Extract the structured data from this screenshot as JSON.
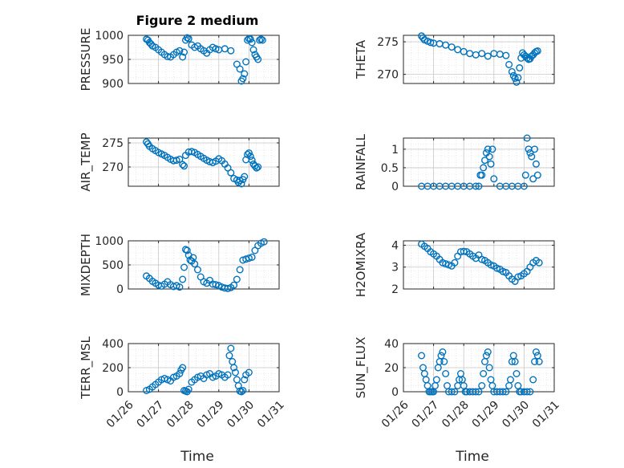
{
  "figure": {
    "title": "Figure 2 medium",
    "marker_color": "#0072bd",
    "xlabel": "Time",
    "x_ticks": [
      "01/26",
      "01/27",
      "01/28",
      "01/29",
      "01/30",
      "01/31"
    ]
  },
  "chart_data": [
    {
      "type": "scatter",
      "ylabel": "PRESSURE",
      "ylim": [
        900,
        1000
      ],
      "yticks": [
        900,
        950,
        1000
      ],
      "grid": true,
      "x": [
        0.6,
        0.65,
        0.7,
        0.75,
        0.8,
        0.9,
        1.0,
        1.1,
        1.2,
        1.3,
        1.4,
        1.5,
        1.6,
        1.7,
        1.8,
        1.85,
        1.9,
        1.95,
        2.0,
        2.1,
        2.2,
        2.3,
        2.4,
        2.5,
        2.6,
        2.7,
        2.8,
        2.9,
        3.0,
        3.2,
        3.4,
        3.6,
        3.7,
        3.75,
        3.8,
        3.85,
        3.9,
        3.95,
        4.0,
        4.05,
        4.1,
        4.15,
        4.2,
        4.25,
        4.3,
        4.35,
        4.4,
        4.45
      ],
      "values": [
        992,
        990,
        985,
        982,
        978,
        975,
        970,
        965,
        960,
        956,
        955,
        960,
        965,
        968,
        955,
        965,
        990,
        995,
        993,
        980,
        975,
        978,
        972,
        968,
        963,
        970,
        975,
        972,
        970,
        972,
        968,
        940,
        930,
        905,
        910,
        920,
        945,
        990,
        993,
        992,
        985,
        970,
        960,
        955,
        950,
        990,
        992,
        990
      ]
    },
    {
      "type": "scatter",
      "ylabel": "THETA",
      "ylim": [
        268.6,
        276
      ],
      "yticks": [
        270,
        275
      ],
      "grid": true,
      "x": [
        0.6,
        0.65,
        0.7,
        0.8,
        0.9,
        1.0,
        1.2,
        1.4,
        1.6,
        1.8,
        2.0,
        2.2,
        2.4,
        2.6,
        2.8,
        3.0,
        3.2,
        3.4,
        3.5,
        3.6,
        3.65,
        3.7,
        3.75,
        3.8,
        3.85,
        3.9,
        3.95,
        4.0,
        4.05,
        4.1,
        4.15,
        4.2,
        4.25,
        4.3,
        4.35,
        4.4,
        4.45
      ],
      "values": [
        275.9,
        275.6,
        275.3,
        275.1,
        274.9,
        274.8,
        274.7,
        274.5,
        274.2,
        273.8,
        273.5,
        273.2,
        273.0,
        273.2,
        272.8,
        273.2,
        273.1,
        272.9,
        271.5,
        270.4,
        269.8,
        269.4,
        268.8,
        269.5,
        271.0,
        272.5,
        273.3,
        273.0,
        272.8,
        272.5,
        272.3,
        272.4,
        272.8,
        273.0,
        273.3,
        273.5,
        273.6
      ]
    },
    {
      "type": "scatter",
      "ylabel": "AIR_TEMP",
      "ylim": [
        266,
        276
      ],
      "yticks": [
        270,
        275
      ],
      "grid": true,
      "x": [
        0.6,
        0.65,
        0.7,
        0.8,
        0.9,
        1.0,
        1.1,
        1.2,
        1.3,
        1.4,
        1.5,
        1.6,
        1.7,
        1.8,
        1.85,
        1.9,
        2.0,
        2.1,
        2.2,
        2.3,
        2.4,
        2.5,
        2.6,
        2.7,
        2.8,
        2.9,
        3.0,
        3.1,
        3.2,
        3.3,
        3.4,
        3.5,
        3.6,
        3.65,
        3.7,
        3.75,
        3.8,
        3.85,
        3.9,
        3.95,
        4.0,
        4.05,
        4.1,
        4.15,
        4.2,
        4.25,
        4.3
      ],
      "values": [
        275.2,
        274.8,
        274.3,
        273.8,
        273.4,
        273.0,
        272.7,
        272.4,
        272.0,
        271.6,
        271.3,
        271.4,
        271.6,
        270.5,
        270.2,
        272.4,
        273.1,
        273.2,
        273.0,
        272.6,
        272.2,
        271.8,
        271.4,
        271.1,
        270.9,
        271.2,
        271.7,
        271.3,
        270.6,
        269.8,
        268.8,
        267.6,
        267.3,
        266.8,
        267.2,
        266.5,
        267.4,
        268.0,
        271.5,
        272.6,
        272.9,
        272.2,
        271.4,
        270.6,
        270.2,
        269.8,
        270.0
      ]
    },
    {
      "type": "scatter",
      "ylabel": "RAINFALL",
      "ylim": [
        0,
        1.3
      ],
      "yticks": [
        0,
        0.5,
        1
      ],
      "grid": true,
      "x": [
        0.6,
        0.8,
        1.0,
        1.2,
        1.4,
        1.6,
        1.8,
        2.0,
        2.2,
        2.4,
        2.5,
        2.55,
        2.6,
        2.65,
        2.7,
        2.75,
        2.8,
        2.85,
        2.9,
        2.95,
        3.0,
        3.2,
        3.4,
        3.6,
        3.8,
        4.0,
        4.05,
        4.1,
        4.15,
        4.2,
        4.25,
        4.3,
        4.35,
        4.4,
        4.45
      ],
      "values": [
        0,
        0,
        0,
        0,
        0,
        0,
        0,
        0,
        0,
        0,
        0,
        0.3,
        0.3,
        0.5,
        0.7,
        0.9,
        1.0,
        0.8,
        0.6,
        1.0,
        0.2,
        0,
        0,
        0,
        0,
        0,
        0.3,
        1.3,
        1.0,
        0.9,
        0.8,
        0.2,
        1.0,
        0.6,
        0.3
      ]
    },
    {
      "type": "scatter",
      "ylabel": "MIXDEPTH",
      "ylim": [
        0,
        1000
      ],
      "yticks": [
        0,
        500,
        1000
      ],
      "grid": true,
      "x": [
        0.6,
        0.7,
        0.8,
        0.9,
        1.0,
        1.1,
        1.2,
        1.3,
        1.4,
        1.5,
        1.6,
        1.7,
        1.8,
        1.85,
        1.9,
        1.95,
        2.0,
        2.05,
        2.1,
        2.15,
        2.2,
        2.3,
        2.4,
        2.5,
        2.6,
        2.7,
        2.8,
        2.9,
        3.0,
        3.1,
        3.2,
        3.3,
        3.4,
        3.5,
        3.6,
        3.7,
        3.8,
        3.9,
        4.0,
        4.1,
        4.2,
        4.3,
        4.4,
        4.5
      ],
      "values": [
        270,
        220,
        160,
        120,
        80,
        60,
        100,
        150,
        90,
        50,
        70,
        40,
        200,
        450,
        820,
        800,
        700,
        600,
        580,
        650,
        520,
        400,
        250,
        150,
        120,
        180,
        100,
        90,
        70,
        40,
        20,
        10,
        30,
        80,
        200,
        400,
        600,
        620,
        640,
        660,
        800,
        900,
        950,
        980
      ]
    },
    {
      "type": "scatter",
      "ylabel": "H2OMIXRA",
      "ylim": [
        2,
        4.2
      ],
      "yticks": [
        2,
        3,
        4
      ],
      "grid": true,
      "x": [
        0.6,
        0.7,
        0.8,
        0.9,
        1.0,
        1.1,
        1.2,
        1.3,
        1.4,
        1.5,
        1.6,
        1.7,
        1.8,
        1.9,
        2.0,
        2.1,
        2.2,
        2.3,
        2.4,
        2.5,
        2.6,
        2.7,
        2.8,
        2.9,
        3.0,
        3.1,
        3.2,
        3.3,
        3.4,
        3.5,
        3.6,
        3.7,
        3.8,
        3.9,
        4.0,
        4.1,
        4.2,
        4.3,
        4.4,
        4.5
      ],
      "values": [
        4.05,
        3.95,
        3.85,
        3.7,
        3.6,
        3.5,
        3.35,
        3.2,
        3.15,
        3.1,
        3.05,
        3.2,
        3.5,
        3.7,
        3.72,
        3.7,
        3.6,
        3.5,
        3.4,
        3.55,
        3.35,
        3.3,
        3.2,
        3.1,
        3.05,
        2.95,
        2.9,
        2.8,
        2.75,
        2.6,
        2.45,
        2.35,
        2.55,
        2.6,
        2.7,
        2.8,
        3.0,
        3.2,
        3.3,
        3.2
      ]
    },
    {
      "type": "scatter",
      "ylabel": "TERR_MSL",
      "ylim": [
        0,
        400
      ],
      "yticks": [
        0,
        200,
        400
      ],
      "grid": true,
      "x": [
        0.6,
        0.7,
        0.8,
        0.9,
        1.0,
        1.1,
        1.2,
        1.3,
        1.4,
        1.5,
        1.6,
        1.7,
        1.75,
        1.8,
        1.85,
        1.9,
        1.95,
        2.0,
        2.1,
        2.2,
        2.3,
        2.4,
        2.5,
        2.6,
        2.7,
        2.8,
        2.9,
        3.0,
        3.1,
        3.2,
        3.3,
        3.35,
        3.4,
        3.45,
        3.5,
        3.55,
        3.6,
        3.65,
        3.7,
        3.75,
        3.8,
        3.85,
        3.9,
        4.0
      ],
      "values": [
        10,
        20,
        40,
        60,
        80,
        100,
        110,
        100,
        90,
        120,
        130,
        150,
        180,
        200,
        10,
        5,
        0,
        20,
        80,
        100,
        120,
        130,
        110,
        140,
        150,
        120,
        130,
        150,
        140,
        120,
        140,
        300,
        360,
        250,
        200,
        160,
        100,
        50,
        5,
        0,
        10,
        100,
        140,
        160
      ]
    },
    {
      "type": "scatter",
      "ylabel": "SUN_FLUX",
      "ylim": [
        0,
        40
      ],
      "yticks": [
        0,
        20,
        40
      ],
      "grid": true,
      "x": [
        0.6,
        0.65,
        0.7,
        0.75,
        0.8,
        0.85,
        0.9,
        0.95,
        1.0,
        1.05,
        1.1,
        1.15,
        1.2,
        1.25,
        1.3,
        1.35,
        1.4,
        1.45,
        1.5,
        1.6,
        1.7,
        1.8,
        1.85,
        1.9,
        1.95,
        2.0,
        2.05,
        2.1,
        2.2,
        2.3,
        2.4,
        2.5,
        2.6,
        2.65,
        2.7,
        2.75,
        2.8,
        2.85,
        2.9,
        2.95,
        3.0,
        3.1,
        3.2,
        3.3,
        3.4,
        3.5,
        3.55,
        3.6,
        3.65,
        3.7,
        3.75,
        3.8,
        3.85,
        3.9,
        4.0,
        4.1,
        4.2,
        4.3,
        4.35,
        4.4,
        4.45,
        4.5
      ],
      "values": [
        30,
        20,
        15,
        10,
        5,
        0,
        0,
        0,
        0,
        5,
        10,
        20,
        25,
        30,
        33,
        25,
        15,
        5,
        0,
        0,
        0,
        5,
        10,
        15,
        10,
        5,
        0,
        0,
        0,
        0,
        0,
        0,
        5,
        15,
        25,
        30,
        33,
        20,
        10,
        5,
        0,
        0,
        0,
        0,
        0,
        5,
        10,
        25,
        30,
        25,
        15,
        5,
        0,
        0,
        0,
        0,
        0,
        10,
        25,
        33,
        30,
        25
      ]
    }
  ]
}
